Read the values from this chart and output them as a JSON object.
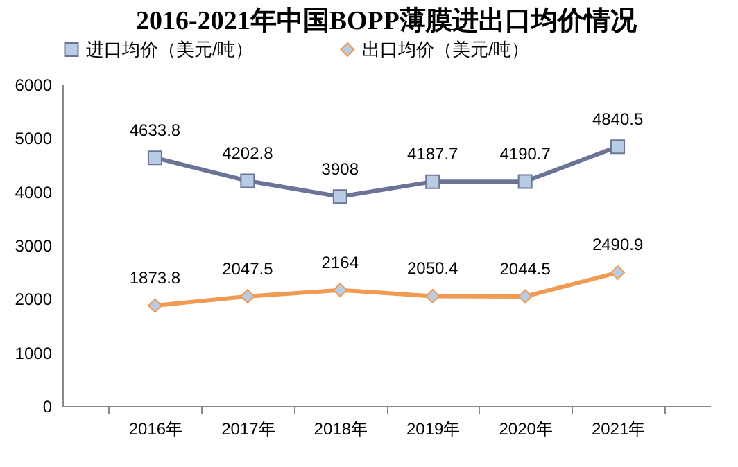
{
  "chart_data": {
    "type": "line",
    "title": "2016-2021年中国BOPP薄膜进出口均价情况",
    "categories": [
      "2016年",
      "2017年",
      "2018年",
      "2019年",
      "2020年",
      "2021年"
    ],
    "series": [
      {
        "name": "进口均价（美元/吨）",
        "color": "#6b7496",
        "marker": "square",
        "values": [
          4633.8,
          4202.8,
          3908,
          4187.7,
          4190.7,
          4840.5
        ]
      },
      {
        "name": "出口均价（美元/吨）",
        "color": "#f09a52",
        "marker": "diamond",
        "values": [
          1873.8,
          2047.5,
          2164,
          2050.4,
          2044.5,
          2490.9
        ]
      }
    ],
    "ylim": [
      0,
      6000
    ],
    "yticks": [
      0,
      1000,
      2000,
      3000,
      4000,
      5000,
      6000
    ],
    "data_labels": true,
    "legend": "top"
  }
}
